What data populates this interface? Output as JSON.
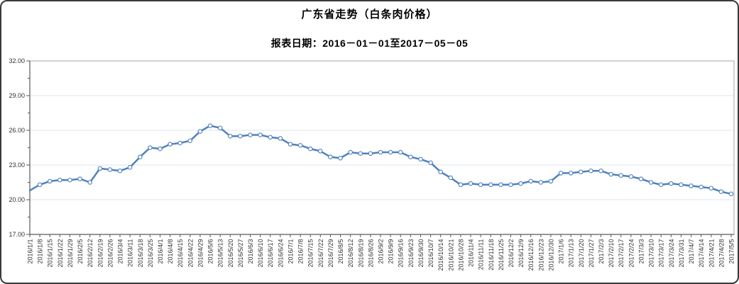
{
  "header": {
    "title": "广东省走势（白条肉价格）",
    "subtitle": "报表日期：2016－01－01至2017－05－05"
  },
  "chart_data": {
    "type": "line",
    "title": "广东省走势（白条肉价格）",
    "subtitle": "报表日期：2016－01－01至2017－05－05",
    "xlabel": "",
    "ylabel": "",
    "ylim": [
      17,
      32
    ],
    "y_major_step": 3,
    "ytick_labels": [
      "32.00",
      "29.00",
      "26.00",
      "23.00",
      "20.00",
      "17.00"
    ],
    "grid": true,
    "legend": "none",
    "x": [
      "2016/1/1",
      "2016/1/8",
      "2016/1/15",
      "2016/1/22",
      "2016/1/29",
      "2016/2/5",
      "2016/2/12",
      "2016/2/19",
      "2016/2/26",
      "2016/3/4",
      "2016/3/11",
      "2016/3/18",
      "2016/3/25",
      "2016/4/1",
      "2016/4/8",
      "2016/4/15",
      "2016/4/22",
      "2016/4/29",
      "2016/5/6",
      "2016/5/13",
      "2016/5/20",
      "2016/5/27",
      "2016/6/3",
      "2016/6/10",
      "2016/6/17",
      "2016/6/24",
      "2016/7/1",
      "2016/7/8",
      "2016/7/15",
      "2016/7/22",
      "2016/7/29",
      "2016/8/5",
      "2016/8/12",
      "2016/8/19",
      "2016/8/26",
      "2016/9/2",
      "2016/9/9",
      "2016/9/16",
      "2016/9/23",
      "2016/9/30",
      "2016/10/7",
      "2016/10/14",
      "2016/10/21",
      "2016/10/28",
      "2016/11/4",
      "2016/11/11",
      "2016/11/18",
      "2016/11/25",
      "2016/12/2",
      "2016/12/9",
      "2016/12/16",
      "2016/12/23",
      "2016/12/30",
      "2017/1/6",
      "2017/1/13",
      "2017/1/20",
      "2017/1/27",
      "2017/2/3",
      "2017/2/10",
      "2017/2/17",
      "2017/2/24",
      "2017/3/3",
      "2017/3/10",
      "2017/3/17",
      "2017/3/24",
      "2017/3/31",
      "2017/4/7",
      "2017/4/14",
      "2017/4/21",
      "2017/4/28",
      "2017/5/5"
    ],
    "series": [
      {
        "name": "白条肉价格",
        "values": [
          20.8,
          21.3,
          21.6,
          21.7,
          21.7,
          21.8,
          21.5,
          22.7,
          22.6,
          22.5,
          22.8,
          23.7,
          24.5,
          24.4,
          24.8,
          24.9,
          25.1,
          25.9,
          26.4,
          26.2,
          25.5,
          25.5,
          25.6,
          25.6,
          25.4,
          25.3,
          24.8,
          24.7,
          24.4,
          24.2,
          23.7,
          23.6,
          24.1,
          24.0,
          24.0,
          24.1,
          24.1,
          24.1,
          23.7,
          23.5,
          23.2,
          22.4,
          21.9,
          21.3,
          21.4,
          21.3,
          21.3,
          21.3,
          21.3,
          21.4,
          21.6,
          21.5,
          21.6,
          22.3,
          22.3,
          22.4,
          22.5,
          22.5,
          22.2,
          22.1,
          22.0,
          21.8,
          21.5,
          21.3,
          21.4,
          21.3,
          21.2,
          21.1,
          21.0,
          20.7,
          20.5
        ]
      }
    ],
    "colors": {
      "line": "#4f81bd",
      "marker_fill": "#ffffff",
      "grid": "#dbe5f1",
      "frame": "#a6a6a6",
      "axis": "#595959",
      "tick_text": "#333333"
    }
  }
}
